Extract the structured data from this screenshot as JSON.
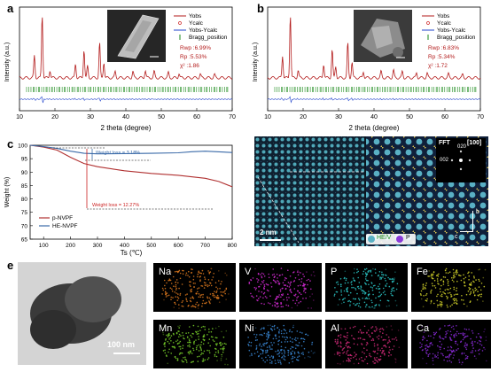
{
  "panel_labels": {
    "a": "a",
    "b": "b",
    "c": "c",
    "d": "d",
    "e": "e"
  },
  "colors": {
    "obs": "#b31b1b",
    "calc": "#cc2222",
    "diff": "#2244cc",
    "bragg": "#1a8a1a",
    "nvpf": "#b03030",
    "henvpf": "#3a6aa8"
  },
  "xrd_a": {
    "ylabel": "Intensity (a.u.)",
    "xlabel": "2 theta (degree)",
    "ticks": [
      "10",
      "20",
      "30",
      "40",
      "50",
      "60",
      "70"
    ],
    "legend": [
      "Yobs",
      "Ycalc",
      "Yobs-Ycalc",
      "Bragg_position"
    ],
    "stats": [
      "Rwp :6.99%",
      "Rp  :5.53%",
      "χ²  :1.86"
    ]
  },
  "xrd_b": {
    "ylabel": "Intensity (a.u.)",
    "xlabel": "2 theta (degree)",
    "ticks": [
      "10",
      "20",
      "30",
      "40",
      "50",
      "60",
      "70"
    ],
    "legend": [
      "Yobs",
      "Ycalc",
      "Yobs-Ycalc",
      "Bragg_position"
    ],
    "stats": [
      "Rwp :6.83%",
      "Rp  :5.34%",
      "χ²  :1.72"
    ]
  },
  "tga": {
    "ylabel": "Weight (%)",
    "xlabel": "Ts (℃)",
    "xticks": [
      "100",
      "200",
      "300",
      "400",
      "500",
      "600",
      "700",
      "800"
    ],
    "yticks": [
      "100",
      "95",
      "90",
      "85",
      "80",
      "75",
      "70",
      "65"
    ],
    "ann1": "Weight loss = 3.18%",
    "ann2": "Weight loss = 12.27%",
    "legend": [
      "p-NVPF",
      "HE-NVPF"
    ]
  },
  "chart_data": [
    {
      "type": "line",
      "xlabel": "Ts (℃)",
      "ylabel": "Weight (%)",
      "xlim": [
        50,
        800
      ],
      "ylim": [
        65,
        100
      ],
      "series": [
        {
          "name": "p-NVPF",
          "x": [
            50,
            100,
            150,
            200,
            250,
            300,
            400,
            500,
            600,
            700,
            750,
            800
          ],
          "y": [
            100,
            99.3,
            98.2,
            95.5,
            93.2,
            92.0,
            90.5,
            89.5,
            88.8,
            87.7,
            86.5,
            84.5
          ]
        },
        {
          "name": "HE-NVPF",
          "x": [
            50,
            100,
            150,
            200,
            250,
            300,
            400,
            500,
            600,
            650,
            700,
            800
          ],
          "y": [
            100,
            99.5,
            98.8,
            97.8,
            97.0,
            96.8,
            96.9,
            97.0,
            97.2,
            97.6,
            97.8,
            97.3
          ]
        }
      ]
    }
  ],
  "stem": {
    "scale": "2 nm",
    "fft": "FFT",
    "zone": "[100]",
    "spot1": "020",
    "spot2": "002",
    "legend1": "HE/V",
    "legend2": "P",
    "axis_b": "b",
    "axis_c": "c"
  },
  "eds": {
    "scale": "100 nm",
    "maps": [
      {
        "label": "Na",
        "color": "#e07a1f"
      },
      {
        "label": "V",
        "color": "#d42ad4"
      },
      {
        "label": "P",
        "color": "#2ac8c8"
      },
      {
        "label": "Fe",
        "color": "#d8d82a"
      },
      {
        "label": "Mn",
        "color": "#7ad42a"
      },
      {
        "label": "Ni",
        "color": "#3a8ad8"
      },
      {
        "label": "Al",
        "color": "#d42a7a"
      },
      {
        "label": "Ca",
        "color": "#8a2ad8"
      }
    ]
  }
}
